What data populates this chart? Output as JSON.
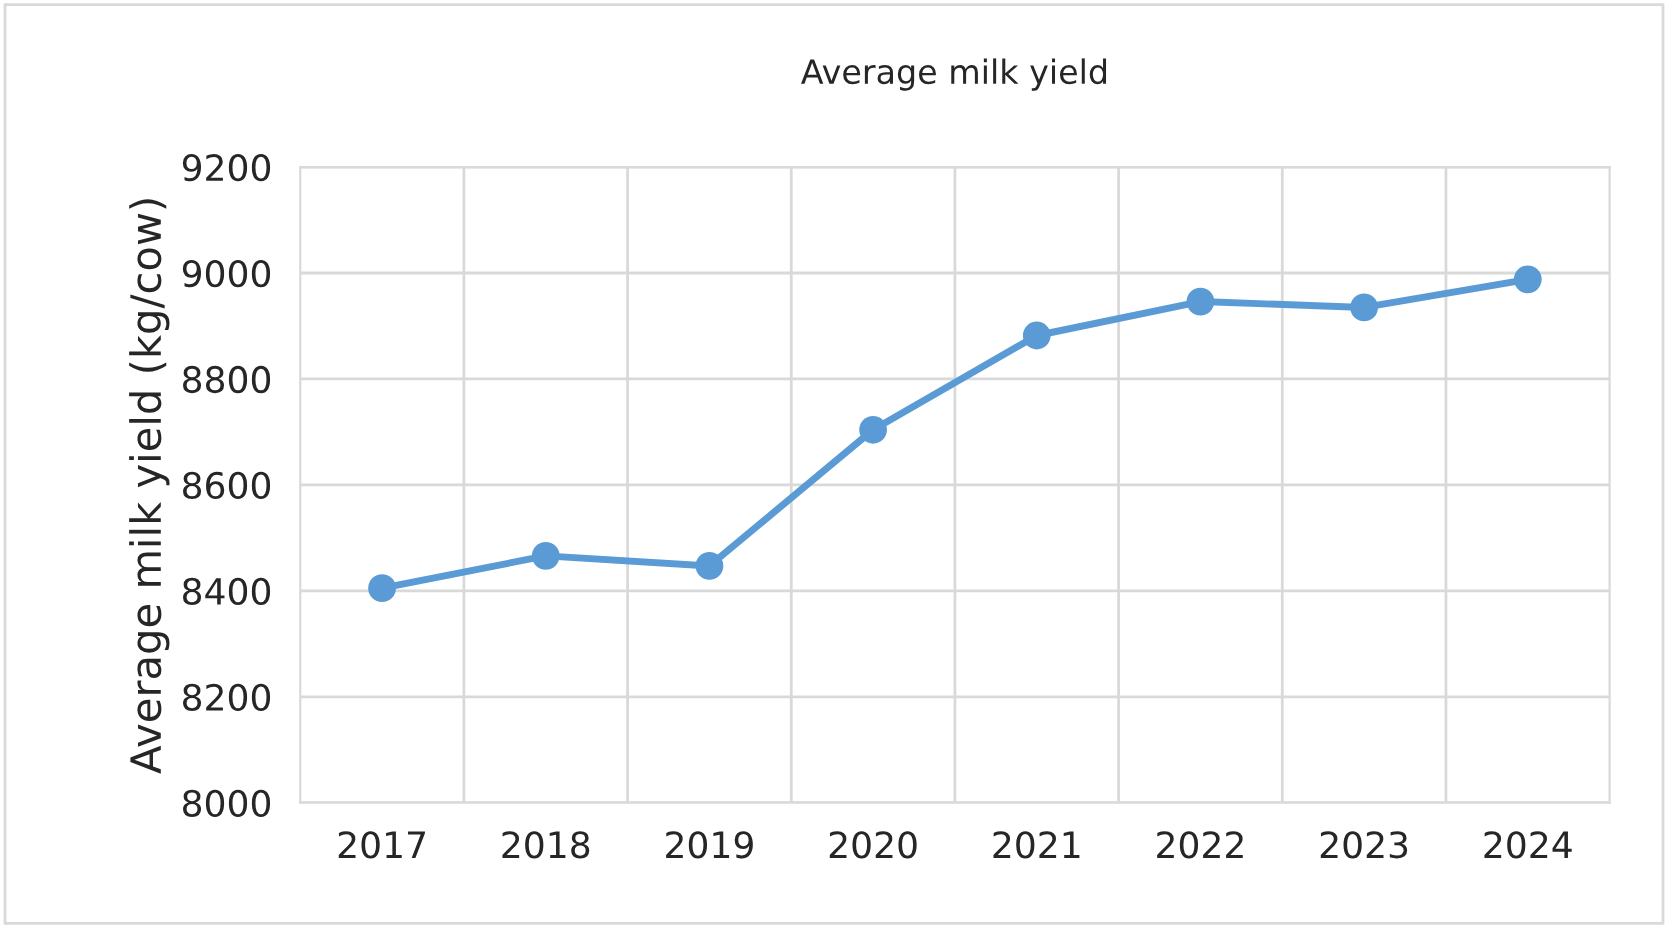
{
  "chart_data": {
    "type": "line",
    "title": "Average milk yield",
    "ylabel": "Average milk yield (kg/cow)",
    "categories": [
      "2017",
      "2018",
      "2019",
      "2020",
      "2021",
      "2022",
      "2023",
      "2024"
    ],
    "series": [
      {
        "color": "#5b9bd5",
        "values": [
          8405,
          8466,
          8447,
          8704,
          8882,
          8946,
          8935,
          8988
        ]
      }
    ],
    "ylim": [
      8000,
      9200
    ],
    "yticks": [
      8000,
      8200,
      8400,
      8600,
      8800,
      9000,
      9200
    ],
    "grid": true,
    "marker": "circle",
    "line_style": "solid"
  }
}
